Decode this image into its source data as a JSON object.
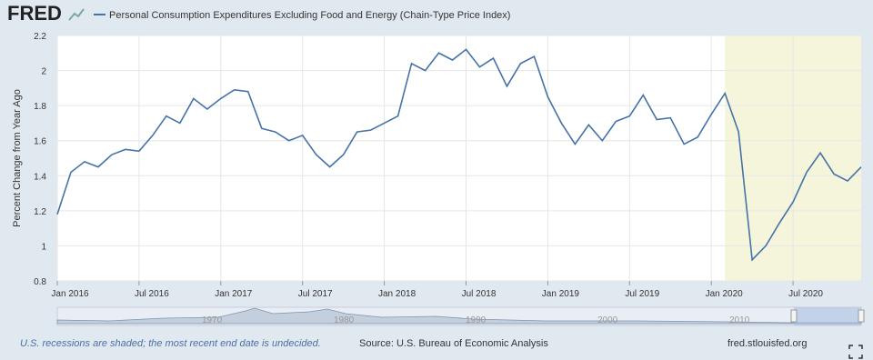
{
  "header": {
    "logo": "FRED"
  },
  "chart_data": {
    "type": "line",
    "title": "Personal Consumption Expenditures Excluding Food and Energy (Chain-Type Price Index)",
    "y_label": "Percent Change from Year Ago",
    "x": [
      "2016-01",
      "2016-02",
      "2016-03",
      "2016-04",
      "2016-05",
      "2016-06",
      "2016-07",
      "2016-08",
      "2016-09",
      "2016-10",
      "2016-11",
      "2016-12",
      "2017-01",
      "2017-02",
      "2017-03",
      "2017-04",
      "2017-05",
      "2017-06",
      "2017-07",
      "2017-08",
      "2017-09",
      "2017-10",
      "2017-11",
      "2017-12",
      "2018-01",
      "2018-02",
      "2018-03",
      "2018-04",
      "2018-05",
      "2018-06",
      "2018-07",
      "2018-08",
      "2018-09",
      "2018-10",
      "2018-11",
      "2018-12",
      "2019-01",
      "2019-02",
      "2019-03",
      "2019-04",
      "2019-05",
      "2019-06",
      "2019-07",
      "2019-08",
      "2019-09",
      "2019-10",
      "2019-11",
      "2019-12",
      "2020-01",
      "2020-02",
      "2020-03",
      "2020-04",
      "2020-05",
      "2020-06",
      "2020-07",
      "2020-08",
      "2020-09",
      "2020-10",
      "2020-11",
      "2020-12"
    ],
    "series": [
      {
        "name": "Personal Consumption Expenditures Excluding Food and Energy (Chain-Type Price Index)",
        "color": "#4572a7",
        "values": [
          1.18,
          1.42,
          1.48,
          1.45,
          1.52,
          1.55,
          1.54,
          1.63,
          1.74,
          1.7,
          1.84,
          1.78,
          1.84,
          1.89,
          1.88,
          1.67,
          1.65,
          1.6,
          1.63,
          1.52,
          1.45,
          1.52,
          1.65,
          1.66,
          1.7,
          1.74,
          2.04,
          2.0,
          2.1,
          2.06,
          2.12,
          2.02,
          2.07,
          1.91,
          2.04,
          2.08,
          1.85,
          1.7,
          1.58,
          1.69,
          1.6,
          1.71,
          1.74,
          1.86,
          1.72,
          1.73,
          1.58,
          1.62,
          1.75,
          1.87,
          1.65,
          0.92,
          1.0,
          1.13,
          1.25,
          1.42,
          1.53,
          1.41,
          1.37,
          1.45
        ]
      }
    ],
    "ylim": [
      0.8,
      2.2
    ],
    "yticks": [
      0.8,
      1.0,
      1.2,
      1.4,
      1.6,
      1.8,
      2.0,
      2.2
    ],
    "xticks": [
      {
        "value": "2016-01",
        "label": "Jan 2016"
      },
      {
        "value": "2016-07",
        "label": "Jul 2016"
      },
      {
        "value": "2017-01",
        "label": "Jan 2017"
      },
      {
        "value": "2017-07",
        "label": "Jul 2017"
      },
      {
        "value": "2018-01",
        "label": "Jan 2018"
      },
      {
        "value": "2018-07",
        "label": "Jul 2018"
      },
      {
        "value": "2019-01",
        "label": "Jan 2019"
      },
      {
        "value": "2019-07",
        "label": "Jul 2019"
      },
      {
        "value": "2020-01",
        "label": "Jan 2020"
      },
      {
        "value": "2020-07",
        "label": "Jul 2020"
      }
    ],
    "recession": {
      "start": "2020-02",
      "color": "#f5f5dc"
    },
    "grid": true,
    "navigator_labels": [
      "1970",
      "1980",
      "1990",
      "2000",
      "2010"
    ]
  },
  "footer": {
    "note": "U.S. recessions are shaded; the most recent end date is undecided.",
    "source": "Source: U.S. Bureau of Economic Analysis",
    "site": "fred.stlouisfed.org"
  }
}
